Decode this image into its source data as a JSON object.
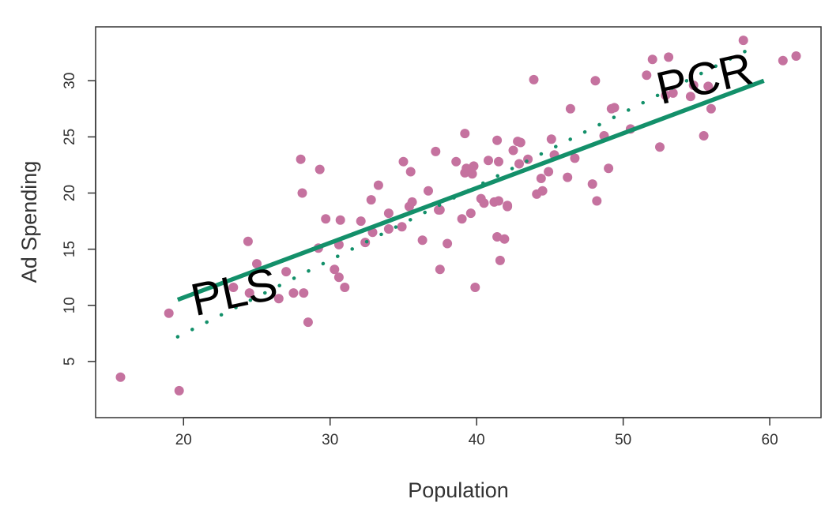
{
  "chart_data": {
    "type": "scatter",
    "title": "",
    "xlabel": "Population",
    "ylabel": "Ad Spending",
    "xlim": [
      14,
      63.5
    ],
    "ylim": [
      0,
      34.8
    ],
    "x_ticks": [
      20,
      30,
      40,
      50,
      60
    ],
    "y_ticks": [
      5,
      10,
      15,
      20,
      25,
      30
    ],
    "grid": false,
    "legend": "none",
    "point_color": "#c5729f",
    "line_color": "#13906a",
    "points": [
      [
        15.7,
        3.6
      ],
      [
        19.7,
        2.4
      ],
      [
        19.0,
        9.3
      ],
      [
        24.4,
        15.7
      ],
      [
        24.5,
        11.1
      ],
      [
        25.0,
        13.7
      ],
      [
        23.4,
        11.6
      ],
      [
        26.5,
        10.6
      ],
      [
        27.0,
        13.0
      ],
      [
        27.5,
        11.1
      ],
      [
        28.2,
        11.1
      ],
      [
        28.5,
        8.5
      ],
      [
        28.0,
        23.0
      ],
      [
        28.1,
        20.0
      ],
      [
        29.3,
        22.1
      ],
      [
        29.2,
        15.1
      ],
      [
        29.7,
        17.7
      ],
      [
        30.3,
        13.2
      ],
      [
        30.6,
        12.5
      ],
      [
        30.6,
        15.4
      ],
      [
        30.7,
        17.6
      ],
      [
        31.0,
        11.6
      ],
      [
        32.1,
        17.5
      ],
      [
        32.4,
        15.6
      ],
      [
        32.8,
        19.4
      ],
      [
        32.9,
        16.5
      ],
      [
        33.3,
        20.7
      ],
      [
        34.0,
        18.2
      ],
      [
        34.0,
        16.8
      ],
      [
        34.9,
        17.0
      ],
      [
        35.0,
        22.8
      ],
      [
        35.4,
        18.8
      ],
      [
        35.5,
        21.9
      ],
      [
        35.6,
        19.2
      ],
      [
        36.3,
        15.8
      ],
      [
        36.7,
        20.2
      ],
      [
        37.2,
        23.7
      ],
      [
        37.4,
        18.5
      ],
      [
        37.5,
        13.2
      ],
      [
        37.5,
        18.5
      ],
      [
        38.0,
        15.5
      ],
      [
        38.6,
        22.8
      ],
      [
        39.0,
        17.7
      ],
      [
        39.2,
        25.3
      ],
      [
        39.3,
        22.2
      ],
      [
        39.2,
        21.8
      ],
      [
        39.6,
        18.2
      ],
      [
        39.7,
        21.7
      ],
      [
        39.8,
        22.4
      ],
      [
        39.9,
        11.6
      ],
      [
        40.3,
        19.5
      ],
      [
        40.5,
        19.1
      ],
      [
        40.8,
        22.9
      ],
      [
        41.2,
        19.2
      ],
      [
        41.4,
        24.7
      ],
      [
        41.4,
        16.1
      ],
      [
        41.5,
        19.3
      ],
      [
        41.5,
        22.8
      ],
      [
        41.6,
        14.0
      ],
      [
        41.9,
        15.9
      ],
      [
        42.1,
        18.8
      ],
      [
        42.1,
        18.9
      ],
      [
        42.5,
        23.8
      ],
      [
        42.8,
        24.6
      ],
      [
        42.9,
        22.6
      ],
      [
        43.0,
        24.5
      ],
      [
        43.5,
        23.0
      ],
      [
        43.9,
        30.1
      ],
      [
        44.1,
        19.9
      ],
      [
        44.4,
        21.3
      ],
      [
        44.5,
        20.2
      ],
      [
        44.9,
        21.9
      ],
      [
        45.1,
        24.8
      ],
      [
        45.3,
        23.4
      ],
      [
        46.2,
        21.4
      ],
      [
        46.4,
        27.5
      ],
      [
        46.7,
        23.1
      ],
      [
        47.9,
        20.8
      ],
      [
        48.1,
        30.0
      ],
      [
        48.2,
        19.3
      ],
      [
        48.7,
        25.1
      ],
      [
        49.0,
        22.2
      ],
      [
        49.2,
        27.5
      ],
      [
        49.4,
        27.6
      ],
      [
        50.5,
        25.7
      ],
      [
        51.6,
        30.5
      ],
      [
        52.0,
        31.9
      ],
      [
        52.5,
        24.1
      ],
      [
        52.9,
        28.7
      ],
      [
        53.1,
        32.1
      ],
      [
        53.4,
        28.9
      ],
      [
        54.6,
        28.6
      ],
      [
        54.8,
        29.6
      ],
      [
        55.5,
        25.1
      ],
      [
        55.8,
        29.5
      ],
      [
        56.0,
        27.5
      ],
      [
        58.2,
        33.6
      ],
      [
        60.9,
        31.8
      ],
      [
        61.8,
        32.2
      ]
    ],
    "series": [
      {
        "values_x": [
          19.6,
          59.6
        ],
        "values_y": [
          10.5,
          30.0
        ],
        "style": "solid"
      },
      {
        "values_x": [
          19.6,
          58.6
        ],
        "values_y": [
          7.2,
          32.8
        ],
        "style": "dotted"
      }
    ],
    "annotations": [
      {
        "text": "PLS",
        "x": 23.5,
        "y": 10.9,
        "rotation": -12
      },
      {
        "text": "PCR",
        "x": 55.6,
        "y": 29.9,
        "rotation": -13
      }
    ]
  }
}
